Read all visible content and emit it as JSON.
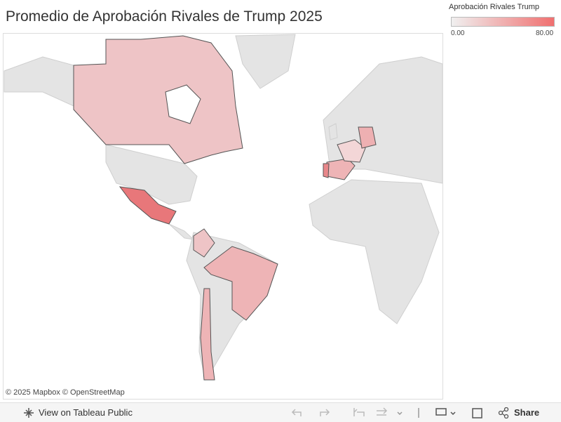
{
  "header": {
    "title": "Promedio de Aprobación Rivales de Trump 2025"
  },
  "legend": {
    "title": "Aprobación Rivales Trump",
    "color_low": "#f0f0f0",
    "color_high": "#f07070",
    "range": [
      {
        "value": 0,
        "label": "0.00"
      },
      {
        "value": 80,
        "label": "80.00"
      }
    ]
  },
  "map": {
    "attribution": "© 2025 Mapbox  © OpenStreetMap"
  },
  "toolbar": {
    "view_link": "View on Tableau Public",
    "share": "Share"
  }
}
